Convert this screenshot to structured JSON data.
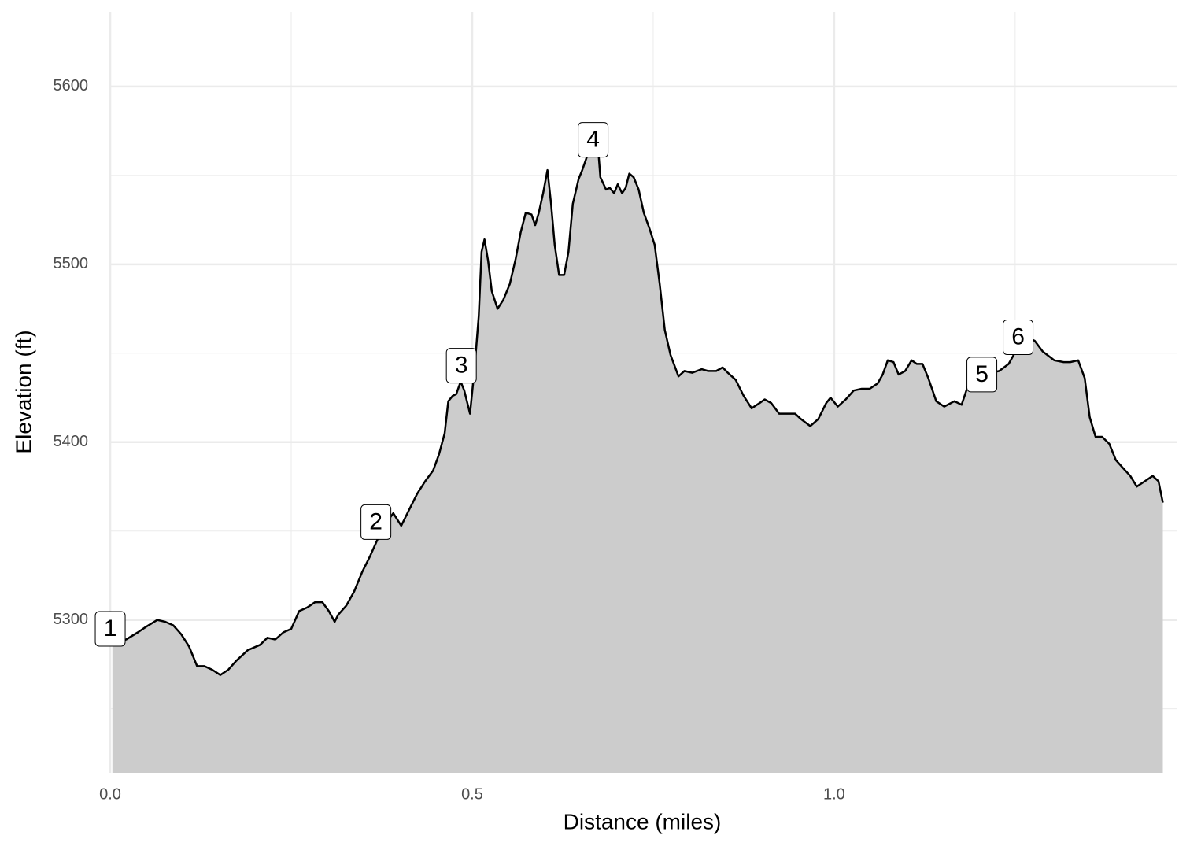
{
  "chart_data": {
    "type": "area",
    "x_label": "Distance (miles)",
    "y_label": "Elevation (ft)",
    "xlim": [
      -0.002,
      1.473
    ],
    "ylim": [
      5214,
      5642
    ],
    "xticks": [
      {
        "value": 0,
        "label": "0.0"
      },
      0.5,
      {
        "value": 1,
        "label": "1.0"
      }
    ],
    "yticks": [
      5300,
      5400,
      5500,
      5600
    ],
    "minor_xticks": [
      0.25,
      0.75,
      1.25
    ],
    "minor_yticks": [
      5250,
      5350,
      5450,
      5550
    ],
    "grid": true,
    "fill": "#cccccc",
    "color": "#000000",
    "x": [
      0.003,
      0.022,
      0.038,
      0.049,
      0.065,
      0.076,
      0.087,
      0.098,
      0.109,
      0.12,
      0.13,
      0.141,
      0.152,
      0.163,
      0.174,
      0.19,
      0.207,
      0.217,
      0.228,
      0.239,
      0.25,
      0.261,
      0.272,
      0.283,
      0.293,
      0.302,
      0.31,
      0.315,
      0.326,
      0.337,
      0.348,
      0.359,
      0.37,
      0.38,
      0.391,
      0.402,
      0.413,
      0.424,
      0.435,
      0.446,
      0.454,
      0.462,
      0.467,
      0.473,
      0.478,
      0.484,
      0.489,
      0.497,
      0.503,
      0.509,
      0.513,
      0.517,
      0.522,
      0.527,
      0.535,
      0.543,
      0.552,
      0.56,
      0.567,
      0.574,
      0.582,
      0.587,
      0.592,
      0.598,
      0.604,
      0.609,
      0.614,
      0.62,
      0.627,
      0.633,
      0.639,
      0.647,
      0.652,
      0.658,
      0.663,
      0.668,
      0.674,
      0.677,
      0.685,
      0.69,
      0.696,
      0.701,
      0.707,
      0.712,
      0.717,
      0.723,
      0.73,
      0.737,
      0.745,
      0.752,
      0.759,
      0.766,
      0.774,
      0.785,
      0.793,
      0.804,
      0.817,
      0.826,
      0.837,
      0.846,
      0.853,
      0.864,
      0.875,
      0.886,
      0.897,
      0.904,
      0.913,
      0.924,
      0.935,
      0.946,
      0.954,
      0.967,
      0.978,
      0.989,
      0.995,
      1.005,
      1.016,
      1.027,
      1.038,
      1.049,
      1.06,
      1.067,
      1.074,
      1.082,
      1.089,
      1.098,
      1.107,
      1.114,
      1.122,
      1.13,
      1.141,
      1.152,
      1.166,
      1.176,
      1.185,
      1.193,
      1.207,
      1.217,
      1.228,
      1.241,
      1.252,
      1.266,
      1.277,
      1.288,
      1.304,
      1.317,
      1.326,
      1.337,
      1.346,
      1.353,
      1.361,
      1.37,
      1.38,
      1.389,
      1.4,
      1.409,
      1.418,
      1.429,
      1.44,
      1.448,
      1.454
    ],
    "series": [
      {
        "values": [
          5286,
          5289,
          5293,
          5296,
          5300,
          5299,
          5297,
          5292,
          5285,
          5274,
          5274,
          5272,
          5269,
          5272,
          5277,
          5283,
          5286,
          5290,
          5289,
          5293,
          5295,
          5305,
          5307,
          5310,
          5310,
          5305,
          5299,
          5303,
          5308,
          5316,
          5327,
          5336,
          5346,
          5354,
          5360,
          5353,
          5362,
          5371,
          5378,
          5384,
          5393,
          5405,
          5423,
          5426,
          5427,
          5434,
          5429,
          5416,
          5440,
          5471,
          5507,
          5514,
          5502,
          5485,
          5475,
          5480,
          5489,
          5503,
          5518,
          5529,
          5528,
          5522,
          5529,
          5540,
          5553,
          5534,
          5511,
          5494,
          5494,
          5507,
          5534,
          5548,
          5553,
          5560,
          5565,
          5567,
          5565,
          5549,
          5542,
          5543,
          5540,
          5545,
          5540,
          5543,
          5551,
          5549,
          5542,
          5529,
          5520,
          5511,
          5489,
          5463,
          5449,
          5437,
          5440,
          5439,
          5441,
          5440,
          5440,
          5442,
          5439,
          5435,
          5426,
          5419,
          5422,
          5424,
          5422,
          5416,
          5416,
          5416,
          5413,
          5409,
          5413,
          5422,
          5425,
          5420,
          5424,
          5429,
          5430,
          5430,
          5433,
          5438,
          5446,
          5445,
          5438,
          5440,
          5446,
          5444,
          5444,
          5436,
          5423,
          5420,
          5423,
          5421,
          5432,
          5437,
          5440,
          5439,
          5440,
          5444,
          5452,
          5459,
          5457,
          5451,
          5446,
          5445,
          5445,
          5446,
          5436,
          5414,
          5403,
          5403,
          5399,
          5390,
          5385,
          5381,
          5375,
          5378,
          5381,
          5378,
          5366
        ]
      }
    ],
    "labels": [
      {
        "x": 0,
        "y": 5295,
        "label": "1"
      },
      {
        "x": 0.367,
        "y": 5355,
        "label": "2"
      },
      {
        "x": 0.485,
        "y": 5443,
        "label": "3"
      },
      {
        "x": 0.667,
        "y": 5570,
        "label": "4"
      },
      {
        "x": 1.204,
        "y": 5438,
        "label": "5"
      },
      {
        "x": 1.254,
        "y": 5459,
        "label": "6"
      }
    ]
  }
}
